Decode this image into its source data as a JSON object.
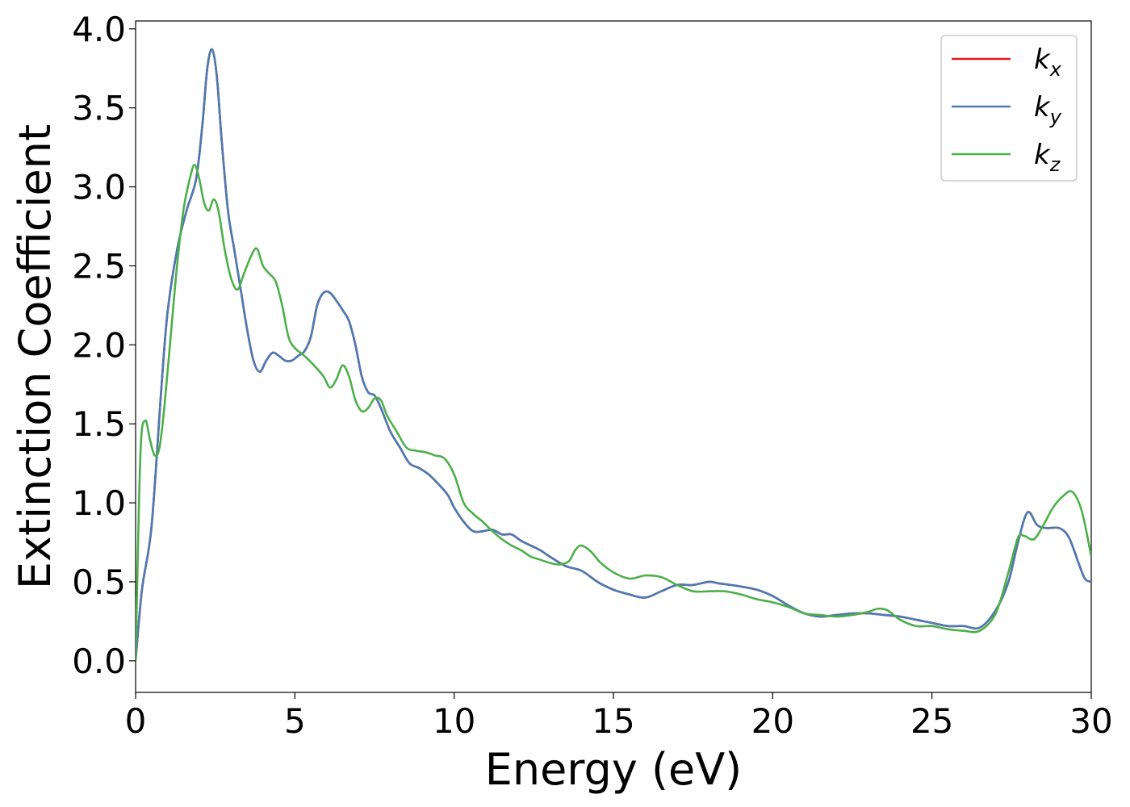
{
  "chart_data": {
    "type": "line",
    "xlabel": "Energy (eV)",
    "ylabel": "Extinction Coefficient",
    "xlim": [
      0,
      30
    ],
    "ylim": [
      -0.2,
      4.05
    ],
    "xticks": [
      0,
      5,
      10,
      15,
      20,
      25,
      30
    ],
    "yticks": [
      0.0,
      0.5,
      1.0,
      1.5,
      2.0,
      2.5,
      3.0,
      3.5,
      4.0
    ],
    "xtick_labels": [
      "0",
      "5",
      "10",
      "15",
      "20",
      "25",
      "30"
    ],
    "ytick_labels": [
      "0.0",
      "0.5",
      "1.0",
      "1.5",
      "2.0",
      "2.5",
      "3.0",
      "3.5",
      "4.0"
    ],
    "grid": false,
    "legend_position": "top-right",
    "series": [
      {
        "name": "k",
        "subscript": "x",
        "color": "#e41a1c",
        "x": [
          0,
          0.2,
          0.5,
          0.8,
          1.0,
          1.3,
          1.6,
          1.9,
          2.1,
          2.25,
          2.4,
          2.55,
          2.7,
          2.9,
          3.1,
          3.3,
          3.5,
          3.7,
          3.9,
          4.1,
          4.3,
          4.5,
          4.7,
          4.9,
          5.1,
          5.3,
          5.5,
          5.7,
          5.9,
          6.1,
          6.3,
          6.5,
          6.7,
          6.9,
          7.1,
          7.3,
          7.5,
          7.7,
          8.0,
          8.3,
          8.6,
          8.9,
          9.2,
          9.5,
          9.8,
          10.0,
          10.3,
          10.6,
          10.9,
          11.2,
          11.5,
          11.8,
          12.1,
          12.4,
          12.7,
          13.0,
          13.5,
          14.0,
          14.5,
          15.0,
          15.5,
          16.0,
          16.5,
          17.0,
          17.5,
          18.0,
          18.3,
          18.7,
          19.0,
          19.5,
          20.0,
          20.5,
          21.0,
          21.5,
          22.0,
          22.5,
          23.0,
          23.5,
          24.0,
          24.5,
          25.0,
          25.5,
          26.0,
          26.5,
          27.0,
          27.4,
          27.7,
          28.0,
          28.3,
          28.6,
          29.0,
          29.3,
          29.6,
          29.8,
          30.0
        ],
        "values": [
          0.0,
          0.45,
          0.85,
          1.7,
          2.2,
          2.6,
          2.85,
          3.05,
          3.4,
          3.75,
          3.87,
          3.7,
          3.3,
          2.85,
          2.6,
          2.35,
          2.1,
          1.9,
          1.83,
          1.9,
          1.95,
          1.93,
          1.9,
          1.9,
          1.93,
          1.96,
          2.05,
          2.25,
          2.33,
          2.33,
          2.28,
          2.22,
          2.15,
          2.0,
          1.8,
          1.7,
          1.68,
          1.6,
          1.45,
          1.35,
          1.25,
          1.22,
          1.18,
          1.12,
          1.05,
          0.97,
          0.88,
          0.82,
          0.82,
          0.83,
          0.8,
          0.8,
          0.76,
          0.73,
          0.7,
          0.66,
          0.6,
          0.57,
          0.5,
          0.45,
          0.42,
          0.4,
          0.44,
          0.48,
          0.48,
          0.5,
          0.49,
          0.48,
          0.47,
          0.45,
          0.41,
          0.35,
          0.3,
          0.28,
          0.29,
          0.3,
          0.3,
          0.29,
          0.28,
          0.26,
          0.24,
          0.22,
          0.22,
          0.21,
          0.32,
          0.5,
          0.75,
          0.94,
          0.86,
          0.84,
          0.84,
          0.78,
          0.62,
          0.52,
          0.5
        ]
      },
      {
        "name": "k",
        "subscript": "y",
        "color": "#4a7ab3",
        "x": [
          0,
          0.2,
          0.5,
          0.8,
          1.0,
          1.3,
          1.6,
          1.9,
          2.1,
          2.25,
          2.4,
          2.55,
          2.7,
          2.9,
          3.1,
          3.3,
          3.5,
          3.7,
          3.9,
          4.1,
          4.3,
          4.5,
          4.7,
          4.9,
          5.1,
          5.3,
          5.5,
          5.7,
          5.9,
          6.1,
          6.3,
          6.5,
          6.7,
          6.9,
          7.1,
          7.3,
          7.5,
          7.7,
          8.0,
          8.3,
          8.6,
          8.9,
          9.2,
          9.5,
          9.8,
          10.0,
          10.3,
          10.6,
          10.9,
          11.2,
          11.5,
          11.8,
          12.1,
          12.4,
          12.7,
          13.0,
          13.5,
          14.0,
          14.5,
          15.0,
          15.5,
          16.0,
          16.5,
          17.0,
          17.5,
          18.0,
          18.3,
          18.7,
          19.0,
          19.5,
          20.0,
          20.5,
          21.0,
          21.5,
          22.0,
          22.5,
          23.0,
          23.5,
          24.0,
          24.5,
          25.0,
          25.5,
          26.0,
          26.5,
          27.0,
          27.4,
          27.7,
          28.0,
          28.3,
          28.6,
          29.0,
          29.3,
          29.6,
          29.8,
          30.0
        ],
        "values": [
          0.0,
          0.45,
          0.85,
          1.7,
          2.2,
          2.6,
          2.85,
          3.05,
          3.4,
          3.75,
          3.87,
          3.7,
          3.3,
          2.85,
          2.6,
          2.35,
          2.1,
          1.9,
          1.83,
          1.9,
          1.95,
          1.93,
          1.9,
          1.9,
          1.93,
          1.96,
          2.05,
          2.25,
          2.33,
          2.33,
          2.28,
          2.22,
          2.15,
          2.0,
          1.8,
          1.7,
          1.68,
          1.6,
          1.45,
          1.35,
          1.25,
          1.22,
          1.18,
          1.12,
          1.05,
          0.97,
          0.88,
          0.82,
          0.82,
          0.83,
          0.8,
          0.8,
          0.76,
          0.73,
          0.7,
          0.66,
          0.6,
          0.57,
          0.5,
          0.45,
          0.42,
          0.4,
          0.44,
          0.48,
          0.48,
          0.5,
          0.49,
          0.48,
          0.47,
          0.45,
          0.41,
          0.35,
          0.3,
          0.28,
          0.29,
          0.3,
          0.3,
          0.29,
          0.28,
          0.26,
          0.24,
          0.22,
          0.22,
          0.21,
          0.32,
          0.5,
          0.75,
          0.94,
          0.86,
          0.84,
          0.84,
          0.78,
          0.62,
          0.52,
          0.5
        ]
      },
      {
        "name": "k",
        "subscript": "z",
        "color": "#4daf4a",
        "x": [
          0,
          0.15,
          0.3,
          0.45,
          0.6,
          0.75,
          0.9,
          1.1,
          1.3,
          1.5,
          1.7,
          1.85,
          2.0,
          2.15,
          2.3,
          2.45,
          2.6,
          2.8,
          3.0,
          3.2,
          3.4,
          3.6,
          3.8,
          4.0,
          4.2,
          4.4,
          4.6,
          4.8,
          5.0,
          5.3,
          5.6,
          5.9,
          6.1,
          6.3,
          6.5,
          6.7,
          6.9,
          7.1,
          7.3,
          7.5,
          7.7,
          7.9,
          8.2,
          8.5,
          8.8,
          9.1,
          9.4,
          9.7,
          10.0,
          10.3,
          10.6,
          10.9,
          11.2,
          11.5,
          11.8,
          12.1,
          12.4,
          12.7,
          13.0,
          13.3,
          13.6,
          13.8,
          14.0,
          14.3,
          14.6,
          15.0,
          15.5,
          16.0,
          16.5,
          17.0,
          17.5,
          18.0,
          18.5,
          19.0,
          19.5,
          20.0,
          20.5,
          21.0,
          21.5,
          22.0,
          22.5,
          23.0,
          23.3,
          23.6,
          24.0,
          24.5,
          25.0,
          25.5,
          26.0,
          26.5,
          27.0,
          27.4,
          27.7,
          27.9,
          28.2,
          28.5,
          28.8,
          29.1,
          29.4,
          29.7,
          30.0
        ],
        "values": [
          0.0,
          1.3,
          1.52,
          1.4,
          1.3,
          1.35,
          1.6,
          2.05,
          2.5,
          2.85,
          3.05,
          3.14,
          3.05,
          2.9,
          2.85,
          2.92,
          2.85,
          2.6,
          2.42,
          2.35,
          2.45,
          2.55,
          2.61,
          2.5,
          2.45,
          2.4,
          2.25,
          2.05,
          1.98,
          1.93,
          1.87,
          1.8,
          1.73,
          1.78,
          1.87,
          1.8,
          1.65,
          1.58,
          1.6,
          1.66,
          1.65,
          1.55,
          1.45,
          1.35,
          1.33,
          1.32,
          1.3,
          1.28,
          1.18,
          1.0,
          0.93,
          0.88,
          0.82,
          0.77,
          0.73,
          0.7,
          0.66,
          0.64,
          0.62,
          0.61,
          0.63,
          0.7,
          0.73,
          0.69,
          0.62,
          0.56,
          0.52,
          0.54,
          0.53,
          0.48,
          0.44,
          0.44,
          0.44,
          0.42,
          0.39,
          0.37,
          0.34,
          0.3,
          0.29,
          0.28,
          0.29,
          0.31,
          0.33,
          0.32,
          0.26,
          0.22,
          0.22,
          0.2,
          0.19,
          0.19,
          0.3,
          0.56,
          0.78,
          0.79,
          0.77,
          0.86,
          0.97,
          1.04,
          1.07,
          0.95,
          0.66
        ]
      }
    ]
  }
}
